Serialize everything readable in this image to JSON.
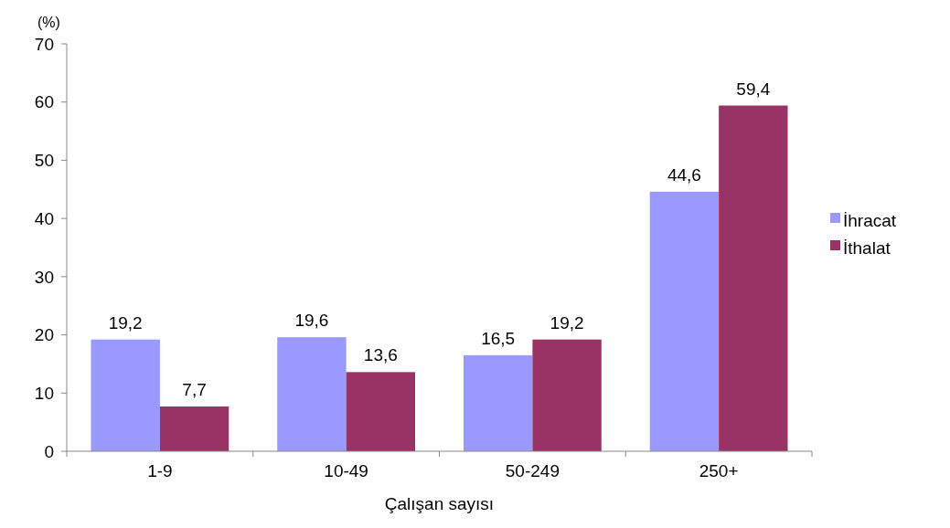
{
  "chart_data": {
    "type": "bar",
    "xlabel": "Çalışan sayısı",
    "ylabel": "(%)",
    "categories": [
      "1-9",
      "10-49",
      "50-249",
      "250+"
    ],
    "series": [
      {
        "name": "İhracat",
        "color": "#9999ff",
        "values": [
          19.2,
          19.6,
          16.5,
          44.6
        ],
        "value_labels": [
          "19,2",
          "19,6",
          "16,5",
          "44,6"
        ]
      },
      {
        "name": "İthalat",
        "color": "#993366",
        "values": [
          7.7,
          13.6,
          19.2,
          59.4
        ],
        "value_labels": [
          "7,7",
          "13,6",
          "19,2",
          "59,4"
        ]
      }
    ],
    "ylim": [
      0,
      70
    ],
    "yticks": [
      0,
      10,
      20,
      30,
      40,
      50,
      60,
      70
    ],
    "grid": false,
    "legend": "right"
  }
}
